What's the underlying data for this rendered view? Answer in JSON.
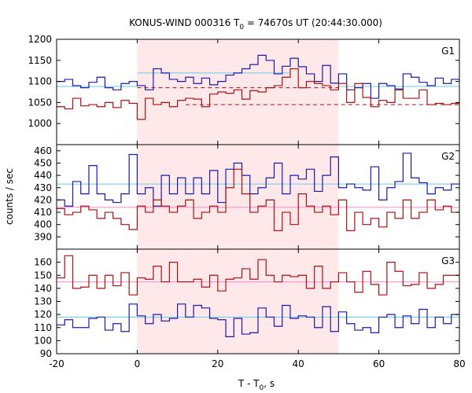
{
  "figure": {
    "title_prefix": "KONUS-WIND 000316 T",
    "title_sub": "0",
    "title_suffix": " = 74670s UT (20:44:30.000)",
    "ylabel": "counts / sec",
    "xlabel_prefix": "T - T",
    "xlabel_sub": "0",
    "xlabel_suffix": ", s"
  },
  "chart_data": [
    {
      "type": "line",
      "panel": "G1",
      "label": "G1",
      "xlim": [
        -20,
        80
      ],
      "ylim": [
        950,
        1200
      ],
      "yticks": [
        950,
        1000,
        1050,
        1100,
        1150,
        1200
      ],
      "xticks": [
        -20,
        0,
        20,
        40,
        60,
        80
      ],
      "shaded_interval": [
        0,
        50
      ],
      "grid": false,
      "bin_edges": [
        -20,
        -18,
        -16,
        -14,
        -12,
        -10,
        -8,
        -6,
        -4,
        -2,
        0,
        2,
        4,
        6,
        8,
        10,
        12,
        14,
        16,
        18,
        20,
        22,
        24,
        26,
        28,
        30,
        32,
        34,
        36,
        38,
        40,
        42,
        44,
        46,
        48,
        50,
        52,
        54,
        56,
        58,
        60,
        62,
        64,
        66,
        68,
        70,
        72,
        74,
        76,
        78,
        80
      ],
      "series": [
        {
          "color": "#1a1aa6",
          "values": [
            1100,
            1105,
            1090,
            1085,
            1098,
            1110,
            1085,
            1080,
            1095,
            1100,
            1090,
            1080,
            1130,
            1120,
            1105,
            1100,
            1110,
            1095,
            1108,
            1092,
            1100,
            1115,
            1120,
            1130,
            1140,
            1162,
            1150,
            1118,
            1136,
            1155,
            1135,
            1118,
            1100,
            1138,
            1096,
            1118,
            1080,
            1085,
            1095,
            1060,
            1095,
            1090,
            1082,
            1118,
            1110,
            1098,
            1090,
            1108,
            1095,
            1105
          ]
        },
        {
          "color": "#aa1111",
          "values": [
            1040,
            1035,
            1060,
            1042,
            1045,
            1040,
            1050,
            1038,
            1055,
            1048,
            1010,
            1060,
            1045,
            1050,
            1040,
            1055,
            1060,
            1058,
            1040,
            1070,
            1075,
            1072,
            1080,
            1058,
            1078,
            1075,
            1085,
            1090,
            1110,
            1130,
            1085,
            1100,
            1095,
            1090,
            1080,
            1095,
            1050,
            1095,
            1062,
            1040,
            1055,
            1050,
            1080,
            1060,
            1060,
            1080,
            1045,
            1048,
            1045,
            1048
          ]
        }
      ],
      "reference_lines": [
        {
          "color": "#66ccee",
          "segments": [
            [
              -20,
              1088,
              0,
              1088
            ],
            [
              0,
              1120,
              38,
              1120
            ],
            [
              50,
              1088,
              80,
              1088
            ]
          ],
          "dashed": false
        },
        {
          "color": "#aa1111",
          "segments": [
            [
              0,
              1085,
              50,
              1085
            ],
            [
              12,
              1045,
              80,
              1045
            ]
          ],
          "dashed": true
        }
      ]
    },
    {
      "type": "line",
      "panel": "G2",
      "label": "G2",
      "xlim": [
        -20,
        80
      ],
      "ylim": [
        380,
        465
      ],
      "yticks": [
        380,
        390,
        400,
        410,
        420,
        430,
        440,
        450,
        460
      ],
      "xticks": [
        -20,
        0,
        20,
        40,
        60,
        80
      ],
      "shaded_interval": [
        0,
        50
      ],
      "grid": false,
      "bin_edges": [
        -20,
        -18,
        -16,
        -14,
        -12,
        -10,
        -8,
        -6,
        -4,
        -2,
        0,
        2,
        4,
        6,
        8,
        10,
        12,
        14,
        16,
        18,
        20,
        22,
        24,
        26,
        28,
        30,
        32,
        34,
        36,
        38,
        40,
        42,
        44,
        46,
        48,
        50,
        52,
        54,
        56,
        58,
        60,
        62,
        64,
        66,
        68,
        70,
        72,
        74,
        76,
        78,
        80
      ],
      "series": [
        {
          "color": "#1a1aa6",
          "values": [
            420,
            415,
            435,
            425,
            448,
            425,
            420,
            418,
            425,
            457,
            425,
            430,
            415,
            440,
            425,
            438,
            425,
            438,
            425,
            444,
            418,
            445,
            450,
            440,
            425,
            430,
            438,
            450,
            425,
            440,
            437,
            445,
            427,
            440,
            455,
            430,
            433,
            430,
            428,
            447,
            420,
            430,
            435,
            458,
            438,
            434,
            425,
            430,
            428,
            433
          ]
        },
        {
          "color": "#aa1111",
          "values": [
            413,
            408,
            410,
            415,
            412,
            405,
            410,
            405,
            400,
            396,
            415,
            410,
            420,
            415,
            410,
            415,
            420,
            405,
            410,
            415,
            410,
            430,
            445,
            425,
            410,
            415,
            420,
            395,
            410,
            400,
            425,
            415,
            410,
            415,
            408,
            420,
            395,
            410,
            400,
            405,
            398,
            410,
            405,
            420,
            405,
            410,
            420,
            412,
            415,
            410
          ]
        }
      ],
      "reference_lines": [
        {
          "color": "#66ccee",
          "segments": [
            [
              -20,
              433,
              80,
              433
            ]
          ],
          "dashed": false
        },
        {
          "color": "#ff88cc",
          "segments": [
            [
              -20,
              414,
              80,
              414
            ]
          ],
          "dashed": false
        }
      ]
    },
    {
      "type": "line",
      "panel": "G3",
      "label": "G3",
      "xlim": [
        -20,
        80
      ],
      "ylim": [
        90,
        170
      ],
      "yticks": [
        90,
        100,
        110,
        120,
        130,
        140,
        150,
        160
      ],
      "xticks": [
        -20,
        0,
        20,
        40,
        60,
        80
      ],
      "shaded_interval": [
        0,
        50
      ],
      "grid": false,
      "bin_edges": [
        -20,
        -18,
        -16,
        -14,
        -12,
        -10,
        -8,
        -6,
        -4,
        -2,
        0,
        2,
        4,
        6,
        8,
        10,
        12,
        14,
        16,
        18,
        20,
        22,
        24,
        26,
        28,
        30,
        32,
        34,
        36,
        38,
        40,
        42,
        44,
        46,
        48,
        50,
        52,
        54,
        56,
        58,
        60,
        62,
        64,
        66,
        68,
        70,
        72,
        74,
        76,
        78,
        80
      ],
      "series": [
        {
          "color": "#1a1aa6",
          "values": [
            112,
            116,
            110,
            110,
            117,
            118,
            108,
            113,
            107,
            128,
            119,
            113,
            120,
            115,
            117,
            128,
            118,
            127,
            125,
            117,
            116,
            103,
            117,
            105,
            106,
            125,
            118,
            111,
            127,
            117,
            119,
            118,
            110,
            126,
            107,
            122,
            113,
            108,
            110,
            106,
            118,
            120,
            110,
            119,
            113,
            124,
            110,
            118,
            113,
            120
          ]
        },
        {
          "color": "#aa1111",
          "values": [
            148,
            165,
            140,
            141,
            150,
            140,
            150,
            142,
            152,
            135,
            148,
            147,
            157,
            145,
            160,
            145,
            145,
            147,
            141,
            150,
            138,
            147,
            148,
            155,
            147,
            162,
            150,
            145,
            150,
            149,
            150,
            140,
            157,
            140,
            145,
            152,
            145,
            137,
            153,
            143,
            135,
            160,
            153,
            142,
            143,
            152,
            140,
            143,
            150,
            150
          ]
        }
      ],
      "reference_lines": [
        {
          "color": "#66ccee",
          "segments": [
            [
              -20,
              118,
              80,
              118
            ]
          ],
          "dashed": false
        },
        {
          "color": "#ff88cc",
          "segments": [
            [
              -20,
              145,
              80,
              145
            ]
          ],
          "dashed": false
        }
      ]
    }
  ]
}
